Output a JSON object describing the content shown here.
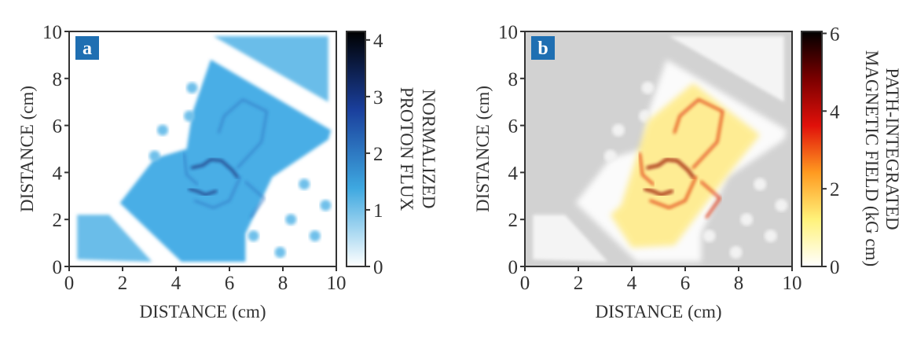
{
  "chart_data": [
    {
      "type": "heatmap",
      "panel_label": "a",
      "xlabel": "DISTANCE (cm)",
      "ylabel": "DISTANCE (cm)",
      "xlim": [
        0,
        10
      ],
      "ylim": [
        0,
        10
      ],
      "xticks": [
        0,
        2,
        4,
        6,
        8,
        10
      ],
      "yticks": [
        0,
        2,
        4,
        6,
        8,
        10
      ],
      "colorbar": {
        "label_lines": [
          "NORMALIZED",
          "PROTON FLUX"
        ],
        "range": [
          0,
          4.15
        ],
        "ticks": [
          0,
          1,
          2,
          3,
          4
        ],
        "colormap": [
          "#ffffff",
          "#3ea8e0",
          "#1a3f9c",
          "#000000"
        ]
      },
      "colors": {
        "background": "#ffffff",
        "fill": "#4aaee6",
        "dark": "#14206e",
        "label_box": "#1f6fb2"
      }
    },
    {
      "type": "heatmap",
      "panel_label": "b",
      "xlabel": "DISTANCE (cm)",
      "ylabel": "DISTANCE (cm)",
      "xlim": [
        0,
        10
      ],
      "ylim": [
        0,
        10
      ],
      "xticks": [
        0,
        2,
        4,
        6,
        8,
        10
      ],
      "yticks": [
        0,
        2,
        4,
        6,
        8,
        10
      ],
      "colorbar": {
        "label_lines": [
          "PATH-INTEGRATED",
          "MAGNETIC FIELD (kG cm)"
        ],
        "range": [
          0,
          6.05
        ],
        "ticks": [
          0,
          2,
          4,
          6
        ],
        "colormap": [
          "#ffffff",
          "#fff27a",
          "#ff9a20",
          "#e0100a",
          "#7a0000",
          "#000000"
        ]
      },
      "colors": {
        "background": "#d2d2d2",
        "fill": "#ffe97a",
        "dark": "#9a0a00",
        "label_box": "#1f6fb2"
      }
    }
  ]
}
